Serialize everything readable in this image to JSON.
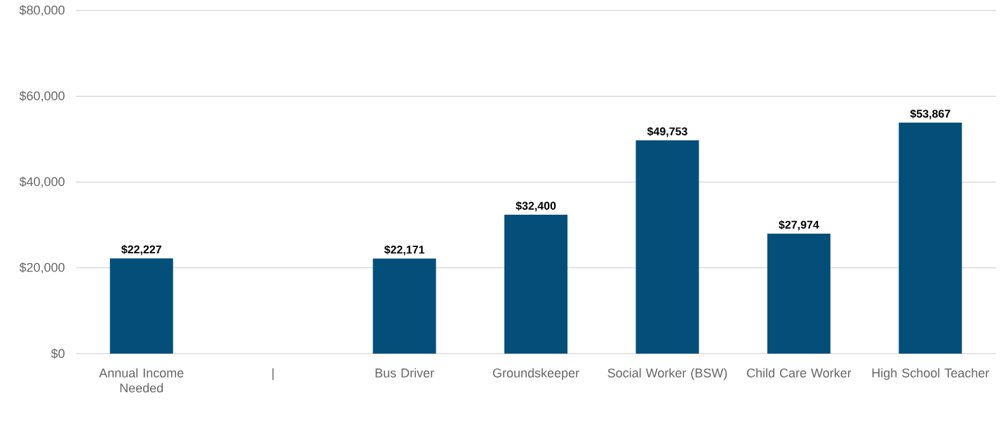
{
  "chart_data": {
    "type": "bar",
    "categories": [
      "Annual Income Needed",
      "|",
      "Bus Driver",
      "Groundskeeper",
      "Social Worker (BSW)",
      "Child Care Worker",
      "High School Teacher"
    ],
    "values": [
      22227,
      null,
      22171,
      32400,
      49753,
      27974,
      53867
    ],
    "value_labels": [
      "$22,227",
      null,
      "$22,171",
      "$32,400",
      "$49,753",
      "$27,974",
      "$53,867"
    ],
    "color": "#034f7a",
    "ylim": [
      0,
      80000
    ],
    "yticks": [
      {
        "value": 0,
        "label": "$0"
      },
      {
        "value": 20000,
        "label": "$20,000"
      },
      {
        "value": 40000,
        "label": "$40,000"
      },
      {
        "value": 60000,
        "label": "$60,000"
      },
      {
        "value": 80000,
        "label": "$80,000"
      }
    ],
    "grid": "y"
  }
}
